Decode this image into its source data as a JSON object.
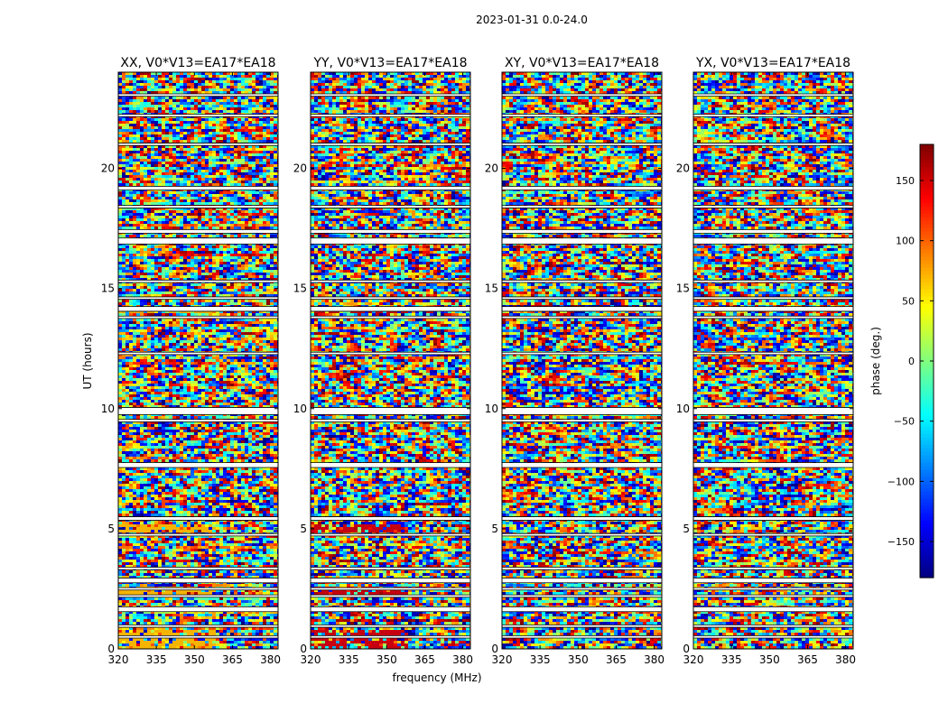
{
  "figure": {
    "suptitle": "2023-01-31 0.0-24.0"
  },
  "chart_data": {
    "type": "heatmap",
    "shared_xlabel": "frequency (MHz)",
    "shared_ylabel": "UT (hours)",
    "xlim": [
      320,
      383
    ],
    "ylim": [
      0,
      24
    ],
    "xticks": [
      320,
      335,
      350,
      365,
      380
    ],
    "yticks": [
      0,
      5,
      10,
      15,
      20
    ],
    "panels": [
      {
        "title": "XX, V0*V13=EA17*EA18",
        "tint": "#f4b400"
      },
      {
        "title": "YY, V0*V13=EA17*EA18",
        "tint": "#c60010"
      },
      {
        "title": "XY, V0*V13=EA17*EA18",
        "tint": ""
      },
      {
        "title": "YX, V0*V13=EA17*EA18",
        "tint": ""
      }
    ],
    "flagged_ut_bands": [
      [
        0.45,
        0.55
      ],
      [
        0.9,
        1.0
      ],
      [
        1.55,
        1.75
      ],
      [
        2.15,
        2.25
      ],
      [
        2.45,
        2.55
      ],
      [
        2.75,
        2.95
      ],
      [
        3.3,
        3.4
      ],
      [
        4.7,
        4.8
      ],
      [
        5.35,
        5.5
      ],
      [
        7.55,
        7.75
      ],
      [
        9.45,
        9.55
      ],
      [
        9.75,
        10.05
      ],
      [
        12.25,
        12.35
      ],
      [
        13.75,
        13.85
      ],
      [
        14.05,
        14.25
      ],
      [
        14.55,
        14.65
      ],
      [
        15.25,
        15.35
      ],
      [
        16.85,
        17.1
      ],
      [
        17.3,
        17.45
      ],
      [
        18.35,
        18.45
      ],
      [
        19.1,
        19.25
      ],
      [
        20.95,
        21.05
      ],
      [
        22.15,
        22.25
      ],
      [
        23.0,
        23.1
      ]
    ],
    "colorbar": {
      "label": "phase (deg.)",
      "range": [
        -180,
        180
      ],
      "ticks": [
        -150,
        -100,
        -50,
        0,
        50,
        100,
        150
      ],
      "tick_labels": [
        "−150",
        "−100",
        "−50",
        "0",
        "50",
        "100",
        "150"
      ],
      "colormap": "jet"
    }
  }
}
